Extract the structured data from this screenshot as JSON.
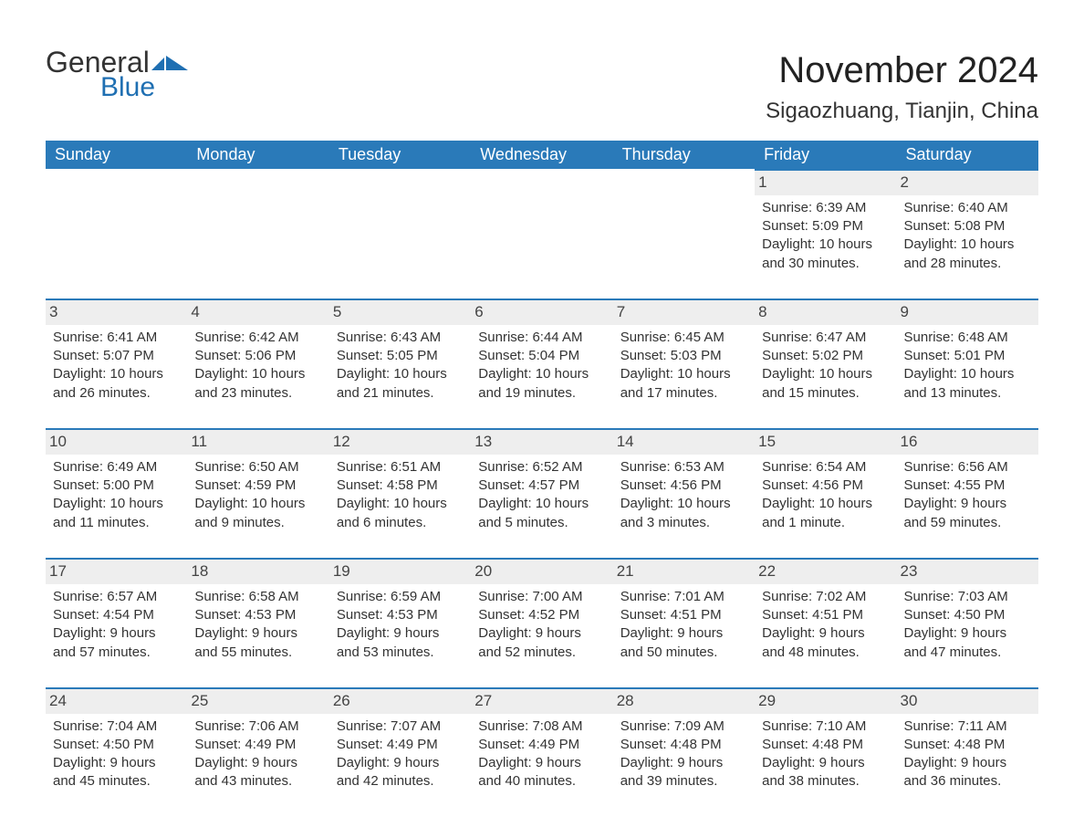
{
  "branding": {
    "logo_text_1": "General",
    "logo_text_2": "Blue",
    "logo_color_1": "#333333",
    "logo_color_2": "#1f6fb2",
    "logo_icon_fill": "#1f6fb2"
  },
  "header": {
    "title": "November 2024",
    "location": "Sigaozhuang, Tianjin, China"
  },
  "calendar": {
    "type": "table",
    "header_bg": "#2a7ab9",
    "header_text_color": "#ffffff",
    "daynum_bg": "#eeeeee",
    "daynum_border_color": "#2a7ab9",
    "background_color": "#ffffff",
    "text_color": "#333333",
    "title_fontsize": 40,
    "location_fontsize": 24,
    "header_fontsize": 18,
    "body_fontsize": 15,
    "columns": [
      "Sunday",
      "Monday",
      "Tuesday",
      "Wednesday",
      "Thursday",
      "Friday",
      "Saturday"
    ],
    "weeks": [
      [
        null,
        null,
        null,
        null,
        null,
        {
          "day": "1",
          "sunrise": "Sunrise: 6:39 AM",
          "sunset": "Sunset: 5:09 PM",
          "daylight": "Daylight: 10 hours and 30 minutes."
        },
        {
          "day": "2",
          "sunrise": "Sunrise: 6:40 AM",
          "sunset": "Sunset: 5:08 PM",
          "daylight": "Daylight: 10 hours and 28 minutes."
        }
      ],
      [
        {
          "day": "3",
          "sunrise": "Sunrise: 6:41 AM",
          "sunset": "Sunset: 5:07 PM",
          "daylight": "Daylight: 10 hours and 26 minutes."
        },
        {
          "day": "4",
          "sunrise": "Sunrise: 6:42 AM",
          "sunset": "Sunset: 5:06 PM",
          "daylight": "Daylight: 10 hours and 23 minutes."
        },
        {
          "day": "5",
          "sunrise": "Sunrise: 6:43 AM",
          "sunset": "Sunset: 5:05 PM",
          "daylight": "Daylight: 10 hours and 21 minutes."
        },
        {
          "day": "6",
          "sunrise": "Sunrise: 6:44 AM",
          "sunset": "Sunset: 5:04 PM",
          "daylight": "Daylight: 10 hours and 19 minutes."
        },
        {
          "day": "7",
          "sunrise": "Sunrise: 6:45 AM",
          "sunset": "Sunset: 5:03 PM",
          "daylight": "Daylight: 10 hours and 17 minutes."
        },
        {
          "day": "8",
          "sunrise": "Sunrise: 6:47 AM",
          "sunset": "Sunset: 5:02 PM",
          "daylight": "Daylight: 10 hours and 15 minutes."
        },
        {
          "day": "9",
          "sunrise": "Sunrise: 6:48 AM",
          "sunset": "Sunset: 5:01 PM",
          "daylight": "Daylight: 10 hours and 13 minutes."
        }
      ],
      [
        {
          "day": "10",
          "sunrise": "Sunrise: 6:49 AM",
          "sunset": "Sunset: 5:00 PM",
          "daylight": "Daylight: 10 hours and 11 minutes."
        },
        {
          "day": "11",
          "sunrise": "Sunrise: 6:50 AM",
          "sunset": "Sunset: 4:59 PM",
          "daylight": "Daylight: 10 hours and 9 minutes."
        },
        {
          "day": "12",
          "sunrise": "Sunrise: 6:51 AM",
          "sunset": "Sunset: 4:58 PM",
          "daylight": "Daylight: 10 hours and 6 minutes."
        },
        {
          "day": "13",
          "sunrise": "Sunrise: 6:52 AM",
          "sunset": "Sunset: 4:57 PM",
          "daylight": "Daylight: 10 hours and 5 minutes."
        },
        {
          "day": "14",
          "sunrise": "Sunrise: 6:53 AM",
          "sunset": "Sunset: 4:56 PM",
          "daylight": "Daylight: 10 hours and 3 minutes."
        },
        {
          "day": "15",
          "sunrise": "Sunrise: 6:54 AM",
          "sunset": "Sunset: 4:56 PM",
          "daylight": "Daylight: 10 hours and 1 minute."
        },
        {
          "day": "16",
          "sunrise": "Sunrise: 6:56 AM",
          "sunset": "Sunset: 4:55 PM",
          "daylight": "Daylight: 9 hours and 59 minutes."
        }
      ],
      [
        {
          "day": "17",
          "sunrise": "Sunrise: 6:57 AM",
          "sunset": "Sunset: 4:54 PM",
          "daylight": "Daylight: 9 hours and 57 minutes."
        },
        {
          "day": "18",
          "sunrise": "Sunrise: 6:58 AM",
          "sunset": "Sunset: 4:53 PM",
          "daylight": "Daylight: 9 hours and 55 minutes."
        },
        {
          "day": "19",
          "sunrise": "Sunrise: 6:59 AM",
          "sunset": "Sunset: 4:53 PM",
          "daylight": "Daylight: 9 hours and 53 minutes."
        },
        {
          "day": "20",
          "sunrise": "Sunrise: 7:00 AM",
          "sunset": "Sunset: 4:52 PM",
          "daylight": "Daylight: 9 hours and 52 minutes."
        },
        {
          "day": "21",
          "sunrise": "Sunrise: 7:01 AM",
          "sunset": "Sunset: 4:51 PM",
          "daylight": "Daylight: 9 hours and 50 minutes."
        },
        {
          "day": "22",
          "sunrise": "Sunrise: 7:02 AM",
          "sunset": "Sunset: 4:51 PM",
          "daylight": "Daylight: 9 hours and 48 minutes."
        },
        {
          "day": "23",
          "sunrise": "Sunrise: 7:03 AM",
          "sunset": "Sunset: 4:50 PM",
          "daylight": "Daylight: 9 hours and 47 minutes."
        }
      ],
      [
        {
          "day": "24",
          "sunrise": "Sunrise: 7:04 AM",
          "sunset": "Sunset: 4:50 PM",
          "daylight": "Daylight: 9 hours and 45 minutes."
        },
        {
          "day": "25",
          "sunrise": "Sunrise: 7:06 AM",
          "sunset": "Sunset: 4:49 PM",
          "daylight": "Daylight: 9 hours and 43 minutes."
        },
        {
          "day": "26",
          "sunrise": "Sunrise: 7:07 AM",
          "sunset": "Sunset: 4:49 PM",
          "daylight": "Daylight: 9 hours and 42 minutes."
        },
        {
          "day": "27",
          "sunrise": "Sunrise: 7:08 AM",
          "sunset": "Sunset: 4:49 PM",
          "daylight": "Daylight: 9 hours and 40 minutes."
        },
        {
          "day": "28",
          "sunrise": "Sunrise: 7:09 AM",
          "sunset": "Sunset: 4:48 PM",
          "daylight": "Daylight: 9 hours and 39 minutes."
        },
        {
          "day": "29",
          "sunrise": "Sunrise: 7:10 AM",
          "sunset": "Sunset: 4:48 PM",
          "daylight": "Daylight: 9 hours and 38 minutes."
        },
        {
          "day": "30",
          "sunrise": "Sunrise: 7:11 AM",
          "sunset": "Sunset: 4:48 PM",
          "daylight": "Daylight: 9 hours and 36 minutes."
        }
      ]
    ]
  }
}
